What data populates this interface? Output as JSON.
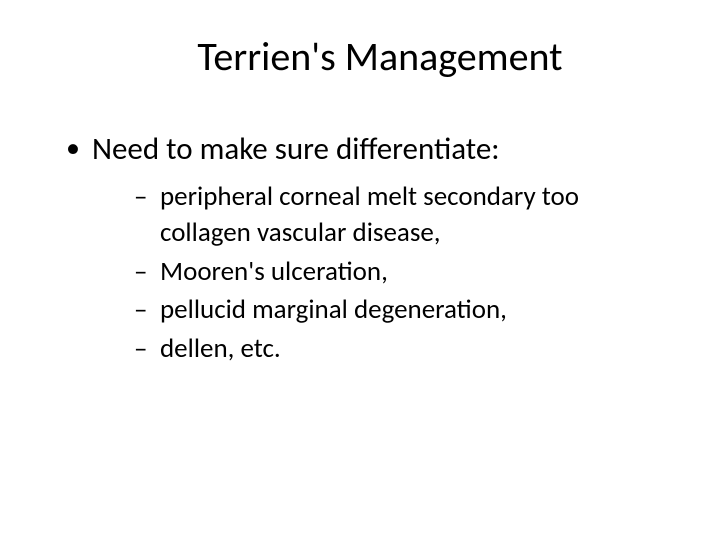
{
  "slide": {
    "title": "Terrien's Management",
    "title_fontsize": 40,
    "title_color": "#000000",
    "background_color": "#ffffff",
    "text_color": "#000000",
    "bullet": {
      "text": "Need to make sure differentiate:",
      "fontsize": 31,
      "marker": "•",
      "subitems": [
        " peripheral corneal melt secondary too collagen vascular disease,",
        "Mooren's ulceration,",
        "pellucid marginal degeneration,",
        "dellen, etc."
      ],
      "sub_fontsize": 27,
      "sub_marker": "–"
    }
  }
}
